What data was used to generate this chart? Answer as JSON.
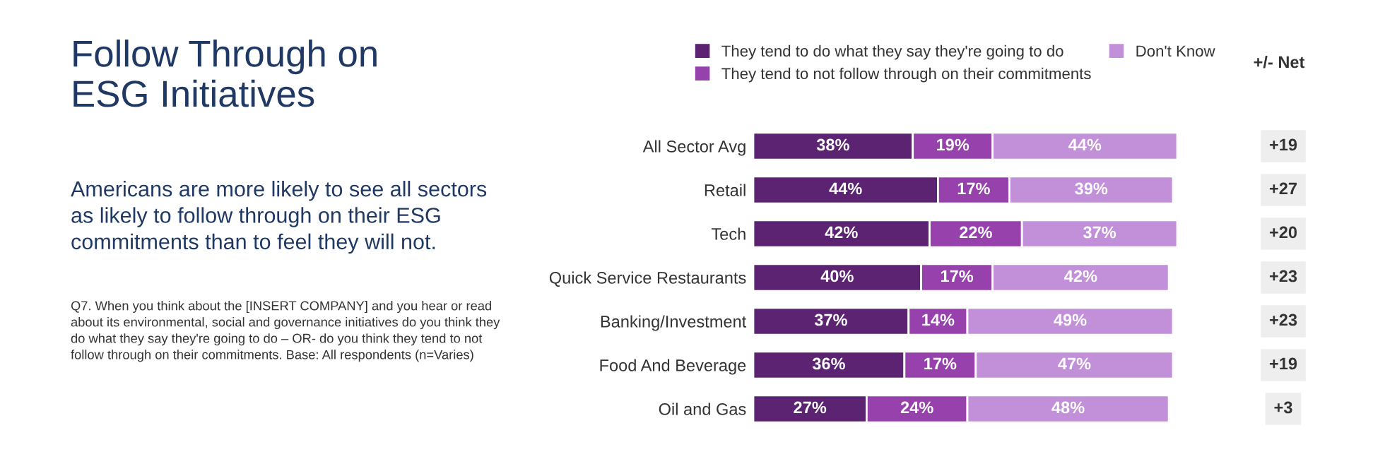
{
  "chart_data": {
    "type": "bar",
    "orientation": "horizontal",
    "stacked": true,
    "legend": "top",
    "grid": false,
    "tick_labels": "y",
    "title": "Follow Through on ESG Initiatives",
    "subtitle": "Americans are more likely to see all sectors as likely to follow through on their ESG commitments than to feel they will not.",
    "categories": [
      "All Sector Avg",
      "Retail",
      "Tech",
      "Quick Service Restaurants",
      "Banking/Investment",
      "Food And Beverage",
      "Oil and Gas"
    ],
    "series": [
      {
        "name": "They tend to do what they say they're going to do",
        "color": "#5b2371",
        "values": [
          38,
          44,
          42,
          40,
          37,
          36,
          27
        ],
        "value_labels": [
          "38%",
          "44%",
          "42%",
          "40%",
          "37%",
          "36%",
          "27%"
        ]
      },
      {
        "name": "They tend to not follow through on their commitments",
        "color": "#9741ad",
        "values": [
          19,
          17,
          22,
          17,
          14,
          17,
          24
        ],
        "value_labels": [
          "19%",
          "17%",
          "22%",
          "17%",
          "14%",
          "17%",
          "24%"
        ]
      },
      {
        "name": "Don't Know",
        "color": "#c28fd9",
        "values": [
          44,
          39,
          37,
          42,
          49,
          47,
          48
        ],
        "value_labels": [
          "44%",
          "39%",
          "37%",
          "42%",
          "49%",
          "47%",
          "48%"
        ]
      }
    ],
    "annotations": [
      "Q7. When you think about the [INSERT COMPANY] and you hear or read about its environmental, social and governance initiatives do you think they do what they say they're going to do – OR- do you think they tend to not follow through on their commitments. Base: All respondents (n=Varies)",
      "+/- Net",
      "+19",
      "+27",
      "+20",
      "+23",
      "+23",
      "+19",
      "+3"
    ]
  }
}
